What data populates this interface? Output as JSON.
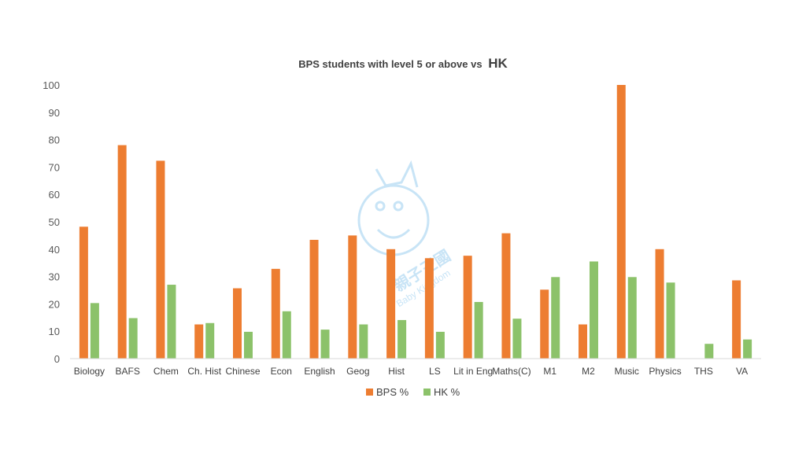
{
  "chart_data": {
    "type": "bar",
    "title": "BPS students with level 5 or above vs",
    "title_suffix": "HK",
    "categories": [
      "Biology",
      "BAFS",
      "Chem",
      "Ch. Hist",
      "Chinese",
      "Econ",
      "English",
      "Geog",
      "Hist",
      "LS",
      "Lit in Eng",
      "Maths(C)",
      "M1",
      "M2",
      "Music",
      "Physics",
      "THS",
      "VA"
    ],
    "series": [
      {
        "name": "BPS %",
        "color": "#ED7D31",
        "values": [
          48.2,
          78,
          72.3,
          12.5,
          25.7,
          32.8,
          43.4,
          45,
          40,
          36.7,
          37.6,
          45.8,
          25.2,
          12.5,
          100,
          40,
          0,
          28.6
        ]
      },
      {
        "name": "HK %",
        "color": "#8CC26A",
        "values": [
          20.3,
          14.8,
          27,
          13,
          9.8,
          17.3,
          10.6,
          12.5,
          14.1,
          9.8,
          20.7,
          14.6,
          29.8,
          35.5,
          29.8,
          27.8,
          5.4,
          7
        ]
      }
    ],
    "ylim": [
      0,
      100
    ],
    "yticks": [
      0,
      10,
      20,
      30,
      40,
      50,
      60,
      70,
      80,
      90,
      100
    ],
    "grid": false,
    "legend_position": "bottom"
  },
  "watermark": {
    "text": "親子王國",
    "text_latin": "Baby Kingdom",
    "icon": "baby-kingdom-logo-icon",
    "color": "#9CCFF0"
  }
}
